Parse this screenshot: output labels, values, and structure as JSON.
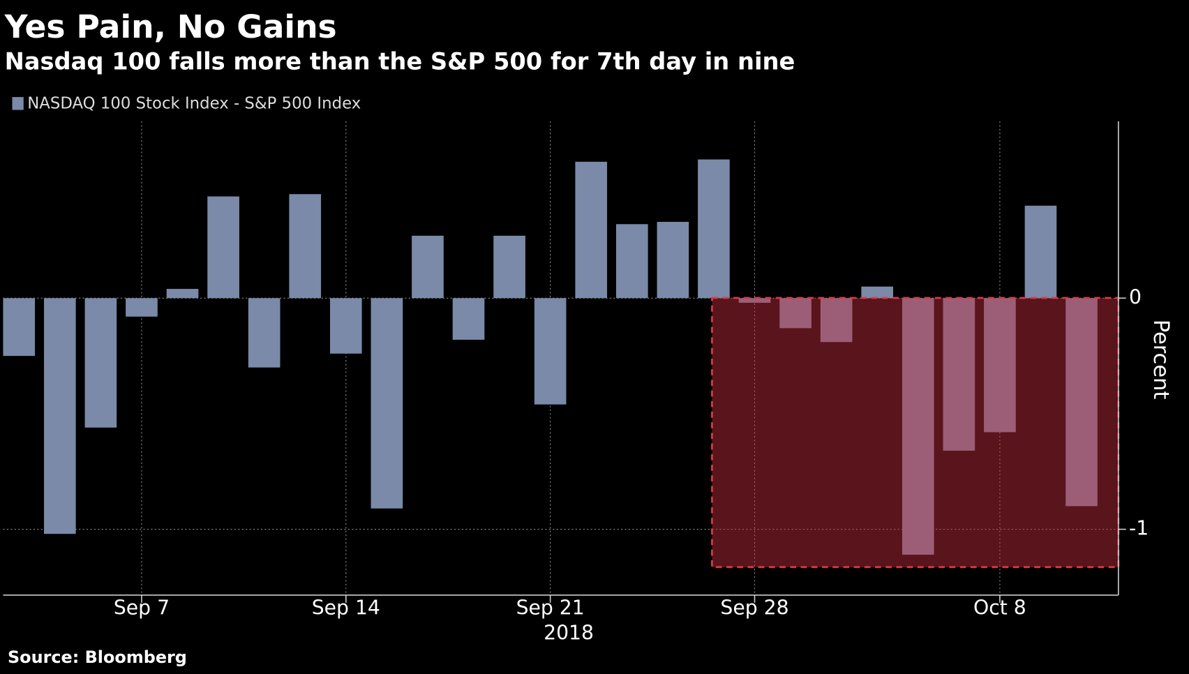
{
  "chart_data": {
    "type": "bar",
    "title": "Yes Pain, No Gains",
    "subtitle": "Nasdaq 100 falls more than the S&P 500 for 7th day in nine",
    "categories": [
      null,
      null,
      null,
      "Sep 7",
      null,
      null,
      null,
      null,
      "Sep 14",
      null,
      null,
      null,
      null,
      "Sep 21",
      null,
      null,
      null,
      null,
      "Sep 28",
      null,
      null,
      null,
      null,
      null,
      "Oct 8",
      null,
      null
    ],
    "x_sublabel": "2018",
    "series": [
      {
        "name": "NASDAQ 100 Stock Index - S&P 500 Index",
        "color": "#7a8aa8",
        "values": [
          -0.25,
          -1.02,
          -0.56,
          -0.08,
          0.04,
          0.44,
          -0.3,
          0.45,
          -0.24,
          -0.91,
          0.27,
          -0.18,
          0.27,
          -0.46,
          0.59,
          0.32,
          0.33,
          0.6,
          -0.02,
          -0.13,
          -0.19,
          0.05,
          -1.11,
          -0.66,
          -0.58,
          0.4,
          -0.9
        ]
      }
    ],
    "ylabel": "Percent",
    "ylim": [
      -1.285,
      0.765
    ],
    "yticks": [
      0,
      -1
    ],
    "grid": true,
    "source": "Source: Bloomberg"
  }
}
